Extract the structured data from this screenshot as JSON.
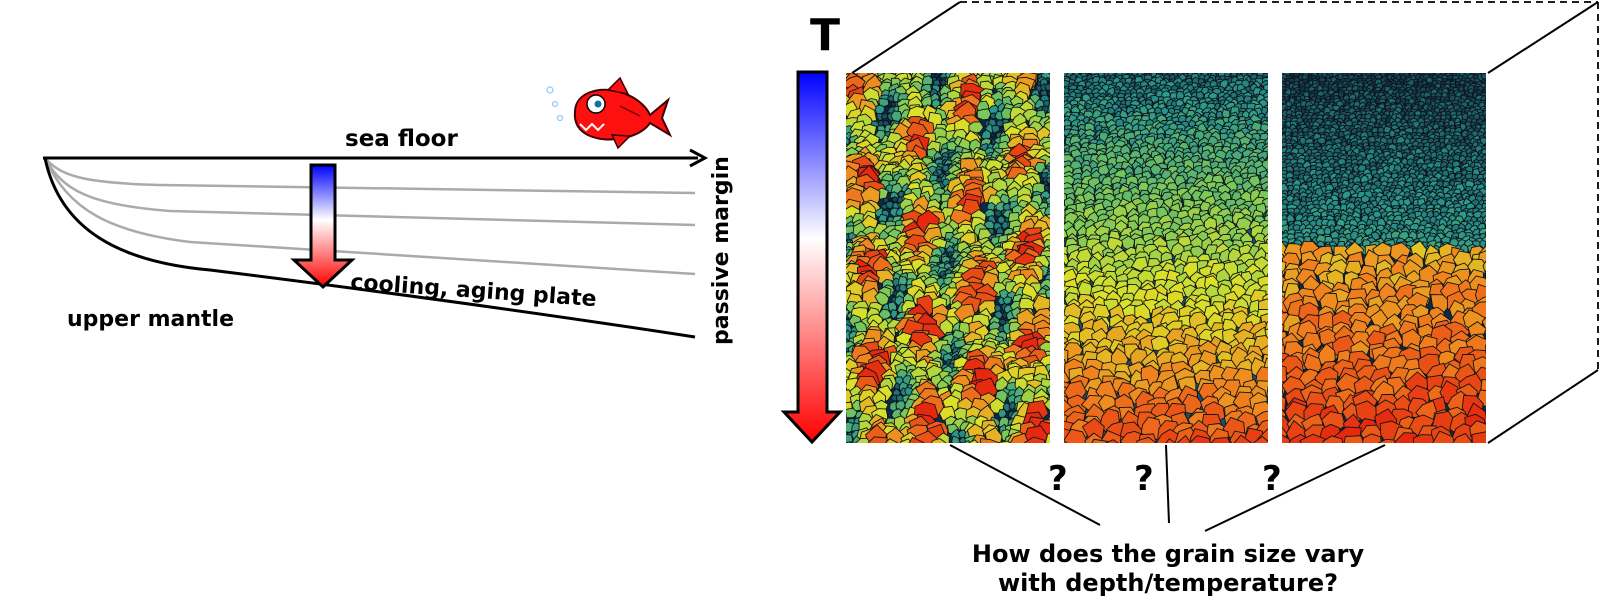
{
  "left_panel": {
    "sea_floor_label": "sea floor",
    "upper_mantle_label": "upper mantle",
    "plate_label": "cooling, aging plate",
    "passive_margin_label": "passive margin",
    "isotherm_count": 3,
    "colors": {
      "cold": "#0000ff",
      "mid": "#ffffff",
      "hot": "#ff0000",
      "isotherm": "#aaaaaa",
      "fish": "#ff1010"
    }
  },
  "right_panel": {
    "temperature_label": "T",
    "question_marks": [
      "?",
      "?",
      "?"
    ],
    "question_line1": "How does the grain size vary",
    "question_line2": "with depth/temperature?",
    "microstructures": [
      {
        "name": "heterogeneous"
      },
      {
        "name": "gradual"
      },
      {
        "name": "sharp-transition"
      }
    ],
    "colors": {
      "small_grains": "#0b2a4a",
      "medium_grains": "#d8e028",
      "large_grains": "#e83010",
      "grain_edge": "#101418"
    }
  }
}
